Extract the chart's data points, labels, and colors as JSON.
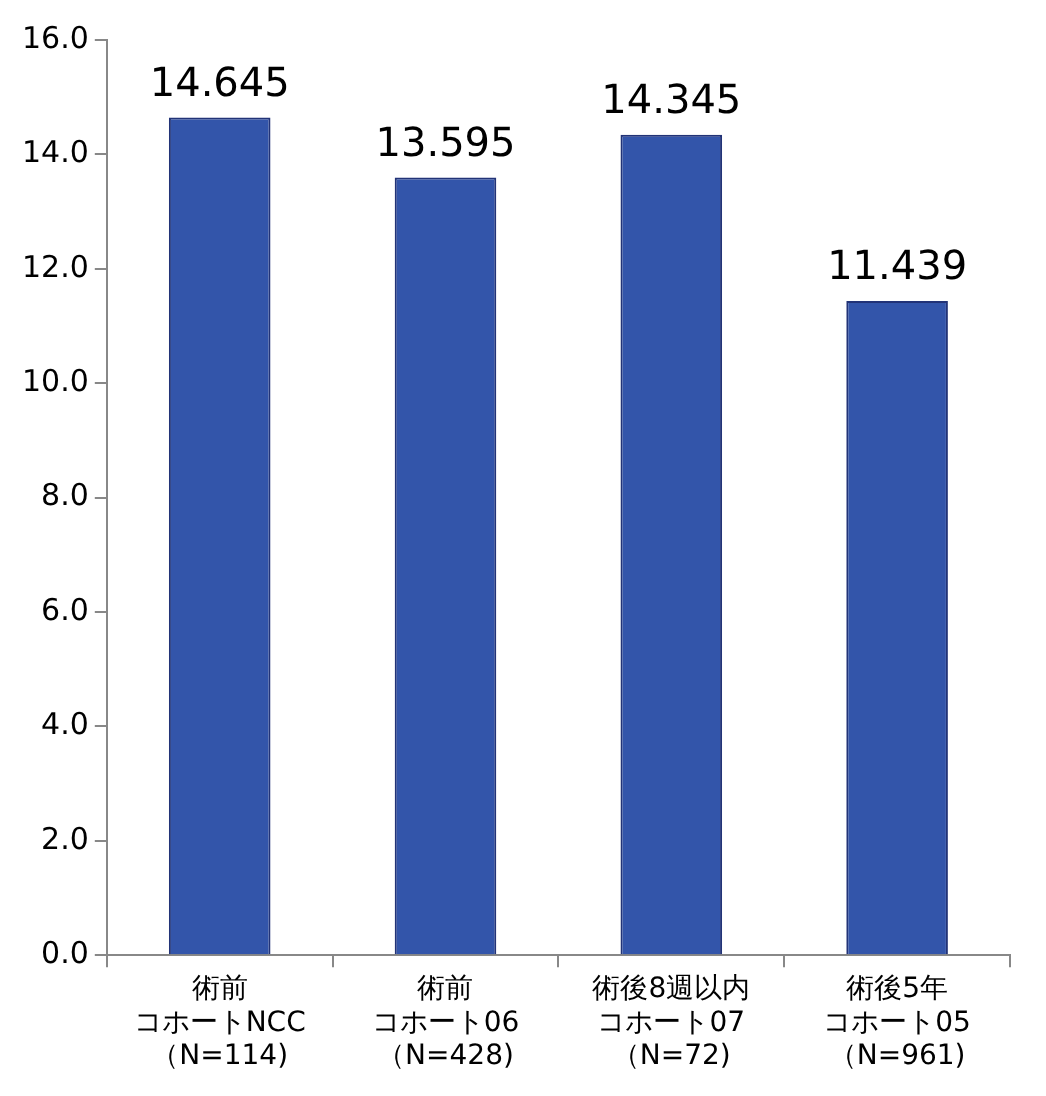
{
  "chart_data": {
    "type": "bar",
    "categories": [
      "術前コホートNCC（N=114)",
      "術前コホート06（N=428)",
      "術後8週以内コホート07（N=72)",
      "術後5年コホート05（N=961)"
    ],
    "values": [
      14.645,
      13.595,
      14.345,
      11.439
    ],
    "color": "#3355aa",
    "ylim": [
      0,
      16
    ],
    "yticks": [
      {
        "value": 0,
        "label": "0.0"
      },
      {
        "value": 2,
        "label": "2.0"
      },
      {
        "value": 4,
        "label": "4.0"
      },
      {
        "value": 6,
        "label": "6.0"
      },
      {
        "value": 8,
        "label": "8.0"
      },
      {
        "value": 10,
        "label": "10.0"
      },
      {
        "value": 12,
        "label": "12.0"
      },
      {
        "value": 14,
        "label": "14.0"
      },
      {
        "value": 16,
        "label": "16.0"
      }
    ],
    "data_labels": true,
    "grid": false,
    "legend": false
  }
}
